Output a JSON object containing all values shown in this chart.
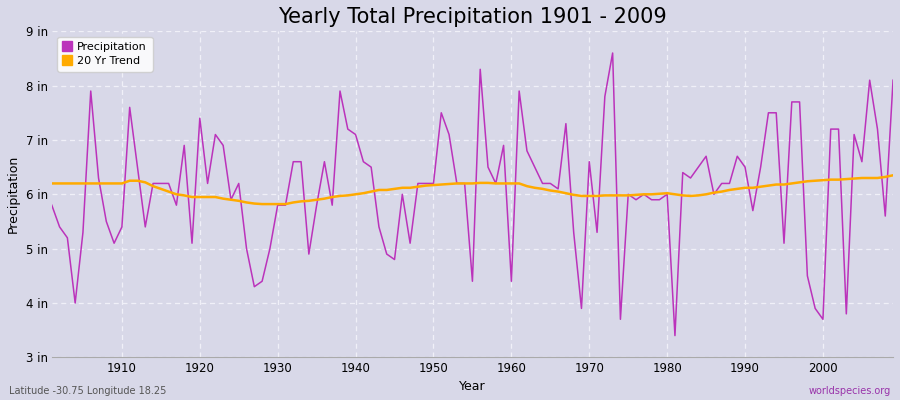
{
  "title": "Yearly Total Precipitation 1901 - 2009",
  "xlabel": "Year",
  "ylabel": "Precipitation",
  "lat_lon_label": "Latitude -30.75 Longitude 18.25",
  "source_label": "worldspecies.org",
  "years": [
    1901,
    1902,
    1903,
    1904,
    1905,
    1906,
    1907,
    1908,
    1909,
    1910,
    1911,
    1912,
    1913,
    1914,
    1915,
    1916,
    1917,
    1918,
    1919,
    1920,
    1921,
    1922,
    1923,
    1924,
    1925,
    1926,
    1927,
    1928,
    1929,
    1930,
    1931,
    1932,
    1933,
    1934,
    1935,
    1936,
    1937,
    1938,
    1939,
    1940,
    1941,
    1942,
    1943,
    1944,
    1945,
    1946,
    1947,
    1948,
    1949,
    1950,
    1951,
    1952,
    1953,
    1954,
    1955,
    1956,
    1957,
    1958,
    1959,
    1960,
    1961,
    1962,
    1963,
    1964,
    1965,
    1966,
    1967,
    1968,
    1969,
    1970,
    1971,
    1972,
    1973,
    1974,
    1975,
    1976,
    1977,
    1978,
    1979,
    1980,
    1981,
    1982,
    1983,
    1984,
    1985,
    1986,
    1987,
    1988,
    1989,
    1990,
    1991,
    1992,
    1993,
    1994,
    1995,
    1996,
    1997,
    1998,
    1999,
    2000,
    2001,
    2002,
    2003,
    2004,
    2005,
    2006,
    2007,
    2008,
    2009
  ],
  "precipitation": [
    5.8,
    5.4,
    5.2,
    4.0,
    5.3,
    7.9,
    6.3,
    5.5,
    5.1,
    5.4,
    7.6,
    6.5,
    5.4,
    6.2,
    6.2,
    6.2,
    5.8,
    6.9,
    5.1,
    7.4,
    6.2,
    7.1,
    6.9,
    5.9,
    6.2,
    5.0,
    4.3,
    4.4,
    5.0,
    5.8,
    5.8,
    6.6,
    6.6,
    4.9,
    5.8,
    6.6,
    5.8,
    7.9,
    7.2,
    7.1,
    6.6,
    6.5,
    5.4,
    4.9,
    4.8,
    6.0,
    5.1,
    6.2,
    6.2,
    6.2,
    7.5,
    7.1,
    6.2,
    6.2,
    4.4,
    8.3,
    6.5,
    6.2,
    6.9,
    4.4,
    7.9,
    6.8,
    6.5,
    6.2,
    6.2,
    6.1,
    7.3,
    5.3,
    3.9,
    6.6,
    5.3,
    7.8,
    8.6,
    3.7,
    6.0,
    5.9,
    6.0,
    5.9,
    5.9,
    6.0,
    3.4,
    6.4,
    6.3,
    6.5,
    6.7,
    6.0,
    6.2,
    6.2,
    6.7,
    6.5,
    5.7,
    6.5,
    7.5,
    7.5,
    5.1,
    7.7,
    7.7,
    4.5,
    3.9,
    3.7,
    7.2,
    7.2,
    3.8,
    7.1,
    6.6,
    8.1,
    7.2,
    5.6,
    8.1
  ],
  "trend": [
    6.2,
    6.2,
    6.2,
    6.2,
    6.2,
    6.2,
    6.2,
    6.2,
    6.2,
    6.2,
    6.25,
    6.25,
    6.22,
    6.15,
    6.1,
    6.05,
    6.0,
    5.98,
    5.95,
    5.95,
    5.95,
    5.95,
    5.92,
    5.9,
    5.88,
    5.85,
    5.83,
    5.82,
    5.82,
    5.82,
    5.82,
    5.85,
    5.87,
    5.88,
    5.9,
    5.92,
    5.95,
    5.97,
    5.98,
    6.0,
    6.02,
    6.05,
    6.08,
    6.08,
    6.1,
    6.12,
    6.12,
    6.14,
    6.16,
    6.17,
    6.18,
    6.19,
    6.2,
    6.2,
    6.2,
    6.21,
    6.21,
    6.2,
    6.2,
    6.2,
    6.2,
    6.15,
    6.12,
    6.1,
    6.07,
    6.05,
    6.02,
    5.99,
    5.97,
    5.97,
    5.97,
    5.98,
    5.98,
    5.98,
    5.98,
    5.99,
    6.0,
    6.0,
    6.01,
    6.02,
    6.0,
    5.98,
    5.97,
    5.98,
    6.0,
    6.03,
    6.05,
    6.08,
    6.1,
    6.12,
    6.12,
    6.14,
    6.16,
    6.18,
    6.18,
    6.2,
    6.22,
    6.24,
    6.25,
    6.26,
    6.27,
    6.27,
    6.28,
    6.29,
    6.3,
    6.3,
    6.3,
    6.32,
    6.35
  ],
  "precip_color": "#bb33bb",
  "trend_color": "#ffaa00",
  "bg_color": "#d8d8e8",
  "plot_bg_color": "#d8d8e8",
  "grid_color": "#f0f0f8",
  "ylim": [
    3.0,
    9.0
  ],
  "yticks": [
    3,
    4,
    5,
    6,
    7,
    8,
    9
  ],
  "ytick_labels": [
    "3 in",
    "4 in",
    "5 in",
    "6 in",
    "7 in",
    "8 in",
    "9 in"
  ],
  "xticks": [
    1910,
    1920,
    1930,
    1940,
    1950,
    1960,
    1970,
    1980,
    1990,
    2000
  ],
  "title_fontsize": 15,
  "axis_label_fontsize": 9,
  "tick_fontsize": 8.5
}
